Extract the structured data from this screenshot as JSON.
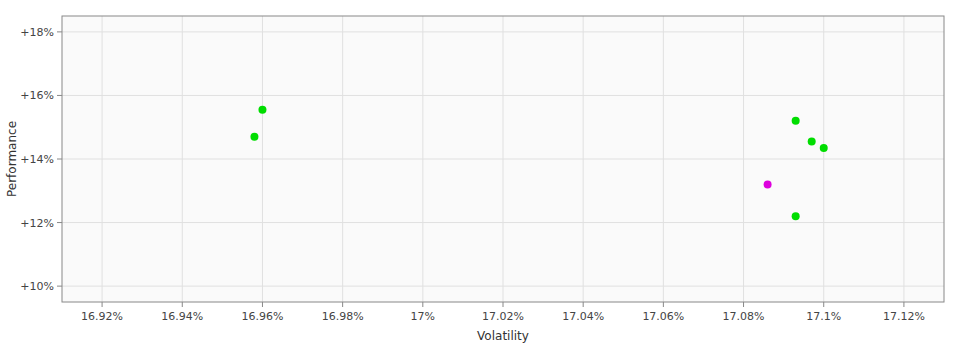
{
  "chart_data": {
    "type": "scatter",
    "xlabel": "Volatility",
    "ylabel": "Performance",
    "xlim": [
      16.91,
      17.13
    ],
    "ylim": [
      9.5,
      18.5
    ],
    "xticks": [
      {
        "value": 16.92,
        "label": "16.92%"
      },
      {
        "value": 16.94,
        "label": "16.94%"
      },
      {
        "value": 16.96,
        "label": "16.96%"
      },
      {
        "value": 16.98,
        "label": "16.98%"
      },
      {
        "value": 17.0,
        "label": "17%"
      },
      {
        "value": 17.02,
        "label": "17.02%"
      },
      {
        "value": 17.04,
        "label": "17.04%"
      },
      {
        "value": 17.06,
        "label": "17.06%"
      },
      {
        "value": 17.08,
        "label": "17.08%"
      },
      {
        "value": 17.1,
        "label": "17.1%"
      },
      {
        "value": 17.12,
        "label": "17.12%"
      }
    ],
    "yticks": [
      {
        "value": 10,
        "label": "+10%"
      },
      {
        "value": 12,
        "label": "+12%"
      },
      {
        "value": 14,
        "label": "+14%"
      },
      {
        "value": 16,
        "label": "+16%"
      },
      {
        "value": 18,
        "label": "+18%"
      }
    ],
    "grid": true,
    "x": [
      16.96,
      16.958,
      17.093,
      17.097,
      17.1,
      17.086,
      17.093
    ],
    "values": [
      15.55,
      14.7,
      15.2,
      14.55,
      14.35,
      13.2,
      12.2
    ],
    "colors": [
      "#00dd00",
      "#00dd00",
      "#00dd00",
      "#00dd00",
      "#00dd00",
      "#dd00dd",
      "#00dd00"
    ]
  }
}
